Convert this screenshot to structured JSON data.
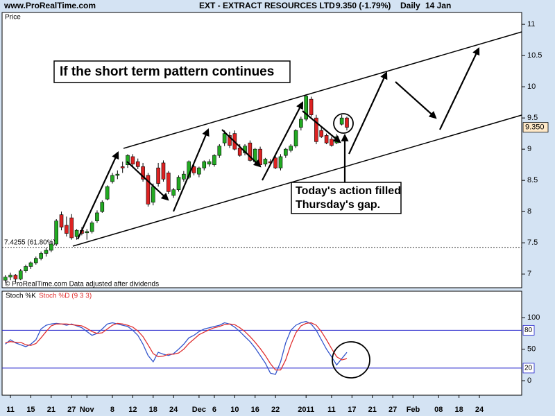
{
  "header": {
    "site": "www.ProRealTime.com",
    "instrument": "EXT - EXTRACT RESOURCES LTD",
    "quote": "9.350 (-1.79%)",
    "period": "Daily",
    "date": "14 Jan"
  },
  "chart_data": [
    {
      "type": "candlestick",
      "y_label": "Price",
      "source": "© ProRealTime.com  Data adjusted after dividends",
      "annotations": [
        "If the short term pattern continues",
        "Today's action filled",
        "Thursday's gap."
      ],
      "up_color": "#22aa22",
      "down_color": "#dd2222",
      "x": [
        0,
        1,
        2,
        3,
        4,
        5,
        6,
        7,
        8,
        9,
        10,
        11,
        12,
        13,
        14,
        15,
        16,
        17,
        18,
        19,
        20,
        21,
        22,
        23,
        24,
        25,
        26,
        27,
        28,
        29,
        30,
        31,
        32,
        33,
        34,
        35,
        36,
        37,
        38,
        39,
        40,
        41,
        42,
        43,
        44,
        45,
        46,
        47,
        48,
        49,
        50,
        51,
        52,
        53,
        54,
        55,
        56,
        57,
        58,
        59,
        60,
        61,
        62,
        63,
        64,
        65,
        66,
        67
      ],
      "open": [
        6.9,
        6.95,
        6.98,
        6.92,
        7.05,
        7.12,
        7.18,
        7.25,
        7.33,
        7.38,
        7.48,
        7.95,
        7.78,
        7.9,
        7.6,
        7.7,
        7.66,
        7.68,
        7.85,
        8.0,
        8.2,
        8.48,
        8.58,
        8.72,
        8.75,
        8.88,
        8.8,
        8.72,
        8.58,
        8.15,
        8.7,
        8.78,
        8.62,
        8.26,
        8.35,
        8.52,
        8.55,
        8.72,
        8.6,
        8.7,
        8.76,
        8.75,
        8.9,
        9.1,
        9.22,
        9.25,
        9.02,
        8.94,
        9.1,
        8.8,
        9.0,
        8.76,
        8.8,
        8.86,
        8.7,
        8.9,
        8.98,
        9.05,
        9.35,
        9.48,
        9.8,
        9.5,
        9.3,
        9.22,
        9.16,
        9.1,
        9.4,
        9.5
      ],
      "high": [
        6.98,
        7.02,
        7.0,
        7.08,
        7.15,
        7.2,
        7.28,
        7.36,
        7.42,
        7.52,
        7.88,
        8.0,
        7.92,
        7.96,
        7.72,
        7.75,
        7.72,
        7.85,
        8.02,
        8.18,
        8.42,
        8.62,
        8.66,
        8.8,
        8.92,
        8.92,
        8.85,
        8.78,
        8.62,
        8.45,
        8.78,
        8.82,
        8.65,
        8.38,
        8.58,
        8.65,
        8.82,
        8.78,
        8.72,
        8.82,
        8.84,
        8.92,
        9.08,
        9.3,
        9.28,
        9.3,
        9.08,
        9.08,
        9.14,
        9.02,
        9.04,
        8.86,
        8.84,
        8.9,
        8.92,
        9.02,
        9.08,
        9.32,
        9.52,
        9.88,
        9.84,
        9.55,
        9.35,
        9.25,
        9.2,
        9.24,
        9.55,
        9.52
      ],
      "low": [
        6.86,
        6.9,
        6.88,
        6.9,
        7.02,
        7.08,
        7.15,
        7.22,
        7.28,
        7.35,
        7.45,
        7.7,
        7.6,
        7.55,
        7.55,
        7.62,
        7.55,
        7.65,
        7.82,
        7.98,
        8.18,
        8.45,
        8.52,
        8.62,
        8.7,
        8.72,
        8.68,
        8.48,
        8.08,
        8.1,
        8.4,
        8.48,
        8.28,
        8.22,
        8.32,
        8.48,
        8.52,
        8.58,
        8.55,
        8.66,
        8.72,
        8.72,
        8.86,
        9.05,
        9.02,
        8.98,
        8.88,
        8.9,
        8.8,
        8.76,
        8.72,
        8.72,
        8.75,
        8.68,
        8.66,
        8.86,
        8.95,
        9.02,
        9.3,
        9.45,
        9.52,
        9.08,
        9.18,
        9.08,
        9.04,
        9.08,
        9.38,
        9.3
      ],
      "close": [
        6.95,
        6.98,
        6.92,
        7.05,
        7.12,
        7.18,
        7.25,
        7.33,
        7.38,
        7.48,
        7.85,
        7.75,
        7.65,
        7.58,
        7.7,
        7.65,
        7.68,
        7.82,
        7.98,
        8.15,
        8.4,
        8.58,
        8.6,
        8.7,
        8.9,
        8.76,
        8.72,
        8.52,
        8.12,
        8.4,
        8.45,
        8.52,
        8.32,
        8.35,
        8.55,
        8.6,
        8.8,
        8.62,
        8.7,
        8.8,
        8.8,
        8.9,
        9.05,
        9.25,
        9.06,
        9.0,
        8.9,
        9.05,
        8.82,
        9.0,
        8.75,
        8.84,
        8.78,
        8.7,
        8.88,
        9.0,
        9.05,
        9.3,
        9.48,
        9.85,
        9.55,
        9.12,
        9.2,
        9.1,
        9.06,
        9.2,
        9.5,
        9.35
      ],
      "xlim": [
        -0.64,
        101.3
      ],
      "ylim": [
        6.78,
        11.19
      ],
      "yticks": [
        7,
        7.5,
        8,
        8.5,
        9,
        9.5,
        10,
        10.5,
        11
      ],
      "last": {
        "value": 9.35,
        "label": "9.350"
      },
      "level": {
        "value": 7.4255,
        "label": "7.4255 (61.80%)"
      }
    },
    {
      "type": "line",
      "x": [
        0,
        1,
        2,
        3,
        4,
        5,
        6,
        7,
        8,
        9,
        10,
        11,
        12,
        13,
        14,
        15,
        16,
        17,
        18,
        19,
        20,
        21,
        22,
        23,
        24,
        25,
        26,
        27,
        28,
        29,
        30,
        31,
        32,
        33,
        34,
        35,
        36,
        37,
        38,
        39,
        40,
        41,
        42,
        43,
        44,
        45,
        46,
        47,
        48,
        49,
        50,
        51,
        52,
        53,
        54,
        55,
        56,
        57,
        58,
        59,
        60,
        61,
        62,
        63,
        64,
        65,
        66,
        67
      ],
      "series": [
        {
          "name": "Stoch %K",
          "color": "#3355cc",
          "values": [
            58,
            65,
            60,
            57,
            54,
            58,
            65,
            82,
            88,
            90,
            91,
            90,
            88,
            90,
            87,
            84,
            78,
            72,
            75,
            82,
            90,
            92,
            90,
            88,
            86,
            80,
            72,
            58,
            40,
            30,
            45,
            42,
            40,
            43,
            50,
            58,
            68,
            72,
            78,
            82,
            84,
            86,
            88,
            92,
            90,
            85,
            78,
            70,
            62,
            52,
            40,
            28,
            12,
            10,
            30,
            60,
            80,
            88,
            92,
            94,
            90,
            80,
            65,
            50,
            38,
            25,
            35,
            45
          ]
        },
        {
          "name": "Stoch %D (9 3 3)",
          "color": "#e03030",
          "values": [
            60,
            62,
            61,
            61,
            57,
            56,
            59,
            68,
            78,
            87,
            90,
            90,
            90,
            89,
            88,
            87,
            83,
            78,
            75,
            76,
            82,
            88,
            91,
            90,
            88,
            85,
            79,
            70,
            57,
            43,
            38,
            39,
            42,
            42,
            44,
            50,
            59,
            66,
            73,
            77,
            81,
            84,
            86,
            89,
            90,
            89,
            84,
            78,
            70,
            61,
            51,
            40,
            27,
            17,
            17,
            33,
            57,
            76,
            87,
            91,
            92,
            88,
            78,
            65,
            51,
            38,
            33,
            35
          ]
        }
      ],
      "levels": [
        80,
        20
      ],
      "level_color": "#2222cc",
      "xlim": [
        -0.64,
        101.3
      ],
      "ylim": [
        -23,
        142
      ],
      "yticks": [
        0,
        50,
        100
      ],
      "xticks": [
        {
          "value": 1,
          "label": "11"
        },
        {
          "value": 5,
          "label": "15"
        },
        {
          "value": 9,
          "label": "21"
        },
        {
          "value": 13,
          "label": "27"
        },
        {
          "value": 16,
          "label": "Nov"
        },
        {
          "value": 21,
          "label": "8"
        },
        {
          "value": 25,
          "label": "12"
        },
        {
          "value": 29,
          "label": "18"
        },
        {
          "value": 33,
          "label": "24"
        },
        {
          "value": 38,
          "label": "Dec"
        },
        {
          "value": 41,
          "label": "6"
        },
        {
          "value": 45,
          "label": "10"
        },
        {
          "value": 49,
          "label": "16"
        },
        {
          "value": 53,
          "label": "22"
        },
        {
          "value": 59,
          "label": "2011"
        },
        {
          "value": 64,
          "label": "11"
        },
        {
          "value": 68,
          "label": "17"
        },
        {
          "value": 72,
          "label": "21"
        },
        {
          "value": 76,
          "label": "27"
        },
        {
          "value": 80,
          "label": "Feb"
        },
        {
          "value": 85,
          "label": "08"
        },
        {
          "value": 89,
          "label": "18"
        },
        {
          "value": 93,
          "label": "24"
        }
      ]
    }
  ]
}
